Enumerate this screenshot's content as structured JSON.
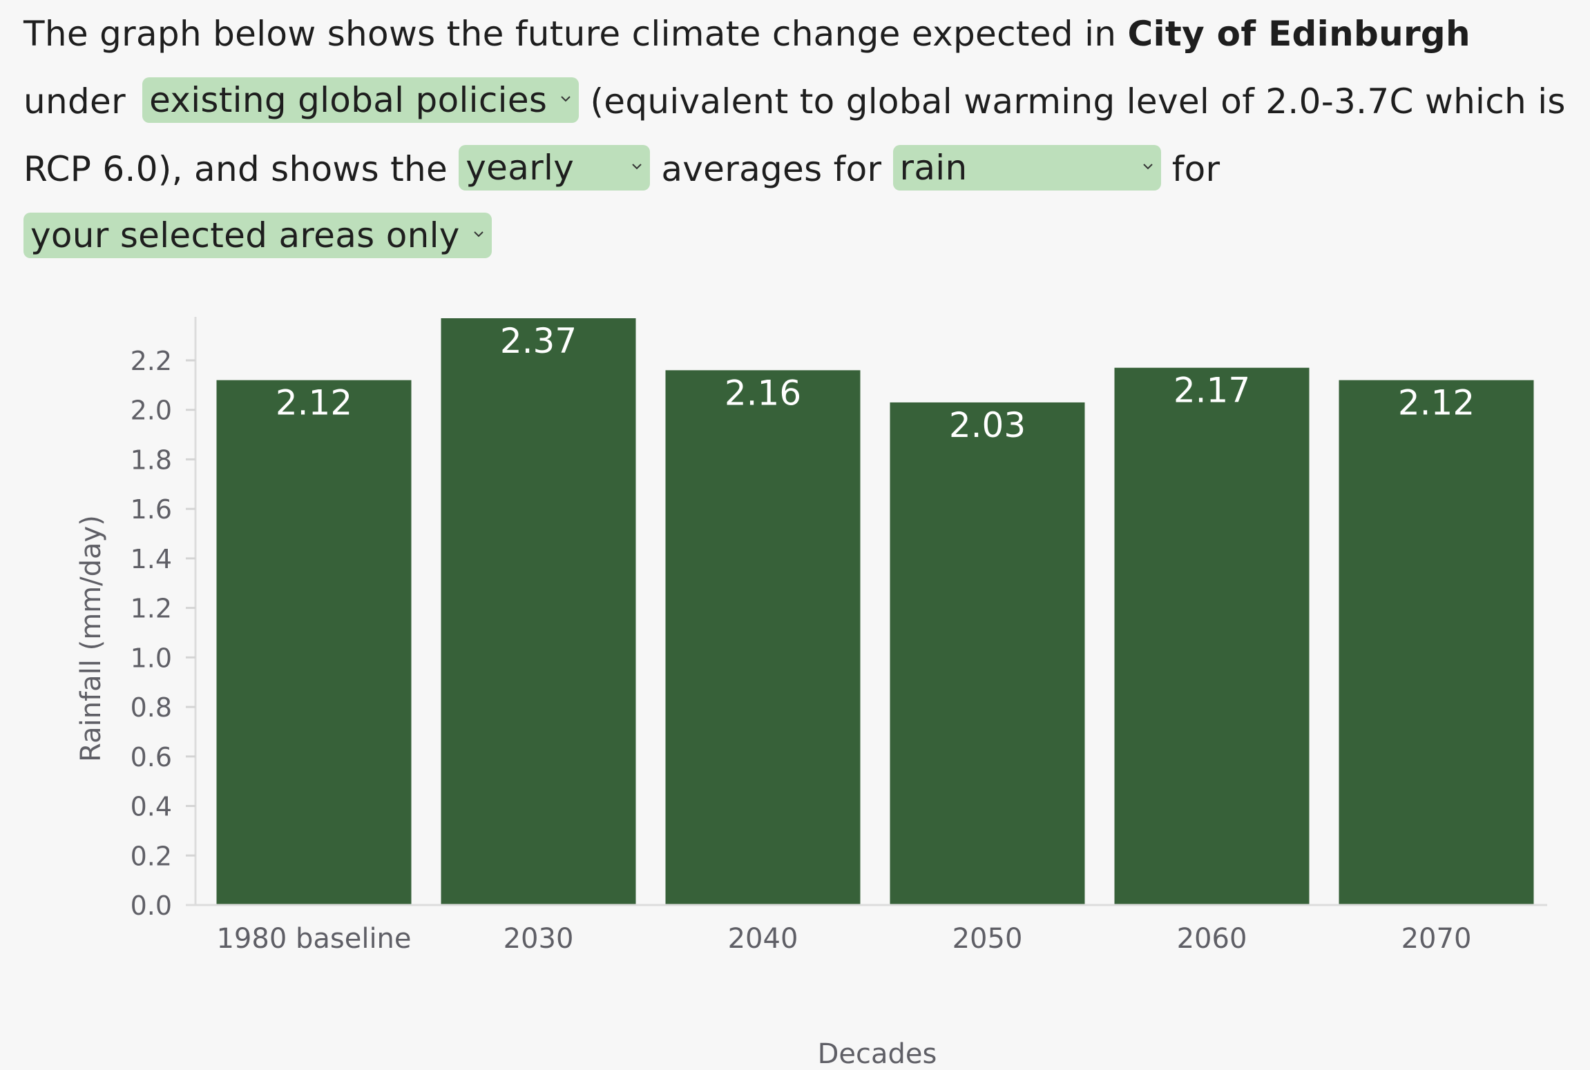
{
  "intro": {
    "part1": "The graph below shows the future climate change expected in ",
    "place": "City of Edinburgh",
    "part2": " under ",
    "scenario_selected": "existing global policies",
    "part3": " (equivalent to global warming level of 2.0-3.7C which is RCP 6.0), and shows the ",
    "period_selected": "yearly",
    "part4": " averages for ",
    "variable_selected": "rain",
    "part5": " for ",
    "area_selected": "your selected areas only"
  },
  "icons": {
    "dropdown": "chevron-down-icon"
  },
  "colors": {
    "bar": "#376139",
    "select_bg": "#bddfbb",
    "axis_text": "#5f5f66",
    "background": "#f7f7f7"
  },
  "chart_data": {
    "type": "bar",
    "title": "",
    "xlabel": "Decades",
    "ylabel": "Rainfall (mm/day)",
    "categories": [
      "1980 baseline",
      "2030",
      "2040",
      "2050",
      "2060",
      "2070"
    ],
    "values": [
      2.12,
      2.37,
      2.16,
      2.03,
      2.17,
      2.12
    ],
    "value_labels": [
      "2.12",
      "2.37",
      "2.16",
      "2.03",
      "2.17",
      "2.12"
    ],
    "yticks": [
      "0.0",
      "0.2",
      "0.4",
      "0.6",
      "0.8",
      "1.0",
      "1.2",
      "1.4",
      "1.6",
      "1.8",
      "2.0",
      "2.2"
    ],
    "ylim": [
      0,
      2.37
    ],
    "grid": false,
    "legend": "none"
  }
}
